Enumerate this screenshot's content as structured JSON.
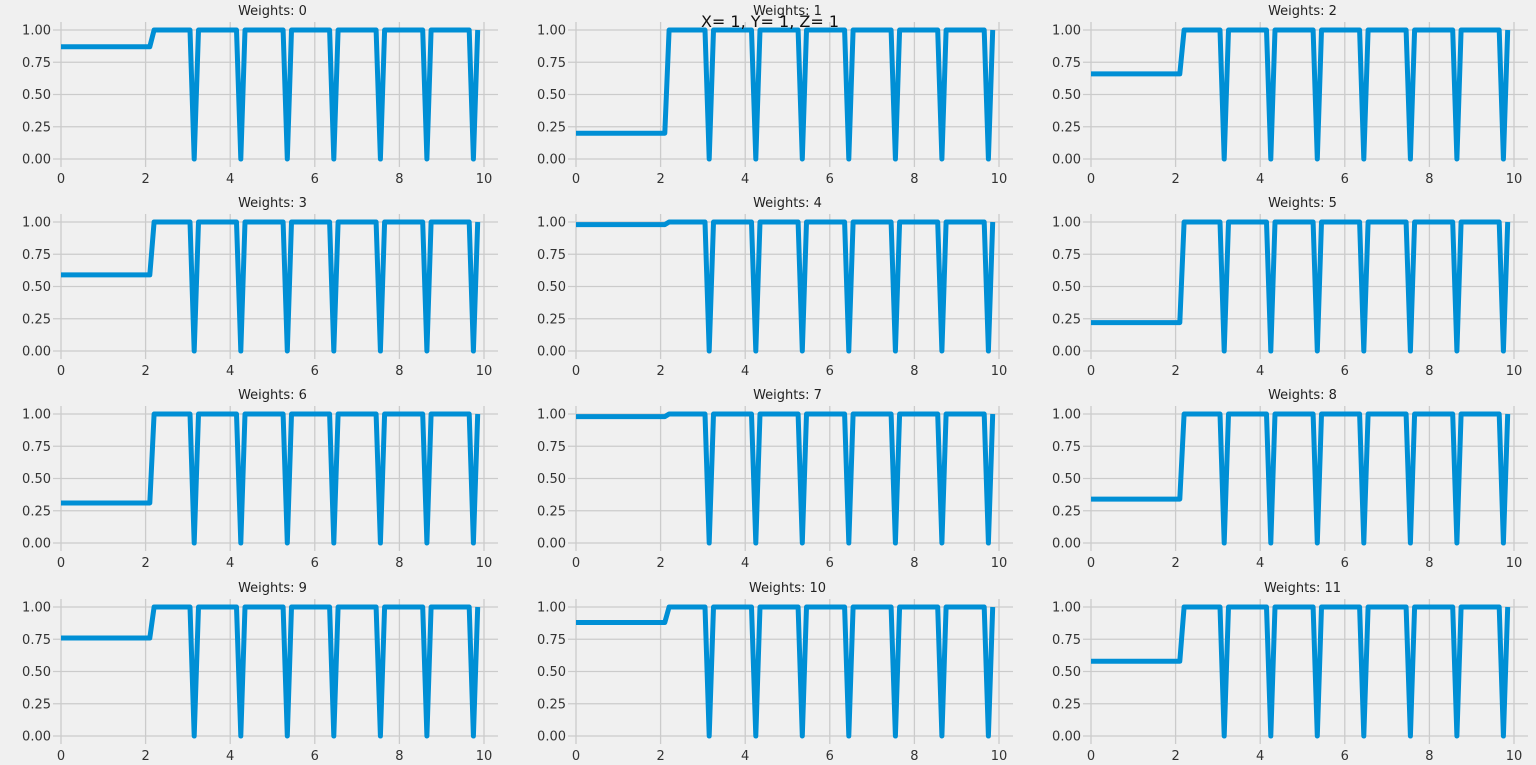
{
  "figure": {
    "suptitle": "X= 1, Y= 1, Z= 1",
    "line_color": "#008fd5",
    "background_color": "#f0f0f0",
    "grid_color": "#cbcbcb"
  },
  "chart_data": [
    {
      "type": "line",
      "title": "Weights: 0",
      "xlim": [
        0,
        10
      ],
      "ylim": [
        0,
        1
      ],
      "grid": true,
      "x_ticks": [
        "0",
        "2",
        "4",
        "6",
        "8",
        "10"
      ],
      "y_ticks": [
        "0.00",
        "0.25",
        "0.50",
        "0.75",
        "1.00"
      ],
      "x": [
        0,
        2.1,
        2.2,
        3.05,
        3.15,
        3.25,
        4.15,
        4.25,
        4.35,
        5.25,
        5.35,
        5.45,
        6.35,
        6.45,
        6.55,
        7.45,
        7.55,
        7.65,
        8.55,
        8.65,
        8.75,
        9.65,
        9.75,
        9.85
      ],
      "y": [
        0.87,
        0.87,
        1.0,
        1.0,
        0.0,
        1.0,
        1.0,
        0.0,
        1.0,
        1.0,
        0.0,
        1.0,
        1.0,
        0.0,
        1.0,
        1.0,
        0.0,
        1.0,
        1.0,
        0.0,
        1.0,
        1.0,
        0.0,
        1.0
      ]
    },
    {
      "type": "line",
      "title": "Weights: 1",
      "xlim": [
        0,
        10
      ],
      "ylim": [
        0,
        1
      ],
      "grid": true,
      "x_ticks": [
        "0",
        "2",
        "4",
        "6",
        "8",
        "10"
      ],
      "y_ticks": [
        "0.00",
        "0.25",
        "0.50",
        "0.75",
        "1.00"
      ],
      "x": [
        0,
        2.1,
        2.2,
        3.05,
        3.15,
        3.25,
        4.15,
        4.25,
        4.35,
        5.25,
        5.35,
        5.45,
        6.35,
        6.45,
        6.55,
        7.45,
        7.55,
        7.65,
        8.55,
        8.65,
        8.75,
        9.65,
        9.75,
        9.85
      ],
      "y": [
        0.2,
        0.2,
        1.0,
        1.0,
        0.0,
        1.0,
        1.0,
        0.0,
        1.0,
        1.0,
        0.0,
        1.0,
        1.0,
        0.0,
        1.0,
        1.0,
        0.0,
        1.0,
        1.0,
        0.0,
        1.0,
        1.0,
        0.0,
        1.0
      ]
    },
    {
      "type": "line",
      "title": "Weights: 2",
      "xlim": [
        0,
        10
      ],
      "ylim": [
        0,
        1
      ],
      "grid": true,
      "x_ticks": [
        "0",
        "2",
        "4",
        "6",
        "8",
        "10"
      ],
      "y_ticks": [
        "0.00",
        "0.25",
        "0.50",
        "0.75",
        "1.00"
      ],
      "x": [
        0,
        2.1,
        2.2,
        3.05,
        3.15,
        3.25,
        4.15,
        4.25,
        4.35,
        5.25,
        5.35,
        5.45,
        6.35,
        6.45,
        6.55,
        7.45,
        7.55,
        7.65,
        8.55,
        8.65,
        8.75,
        9.65,
        9.75,
        9.85
      ],
      "y": [
        0.66,
        0.66,
        1.0,
        1.0,
        0.0,
        1.0,
        1.0,
        0.0,
        1.0,
        1.0,
        0.0,
        1.0,
        1.0,
        0.0,
        1.0,
        1.0,
        0.0,
        1.0,
        1.0,
        0.0,
        1.0,
        1.0,
        0.0,
        1.0
      ]
    },
    {
      "type": "line",
      "title": "Weights: 3",
      "xlim": [
        0,
        10
      ],
      "ylim": [
        0,
        1
      ],
      "grid": true,
      "x_ticks": [
        "0",
        "2",
        "4",
        "6",
        "8",
        "10"
      ],
      "y_ticks": [
        "0.00",
        "0.25",
        "0.50",
        "0.75",
        "1.00"
      ],
      "x": [
        0,
        2.1,
        2.2,
        3.05,
        3.15,
        3.25,
        4.15,
        4.25,
        4.35,
        5.25,
        5.35,
        5.45,
        6.35,
        6.45,
        6.55,
        7.45,
        7.55,
        7.65,
        8.55,
        8.65,
        8.75,
        9.65,
        9.75,
        9.85
      ],
      "y": [
        0.59,
        0.59,
        1.0,
        1.0,
        0.0,
        1.0,
        1.0,
        0.0,
        1.0,
        1.0,
        0.0,
        1.0,
        1.0,
        0.0,
        1.0,
        1.0,
        0.0,
        1.0,
        1.0,
        0.0,
        1.0,
        1.0,
        0.0,
        1.0
      ]
    },
    {
      "type": "line",
      "title": "Weights: 4",
      "xlim": [
        0,
        10
      ],
      "ylim": [
        0,
        1
      ],
      "grid": true,
      "x_ticks": [
        "0",
        "2",
        "4",
        "6",
        "8",
        "10"
      ],
      "y_ticks": [
        "0.00",
        "0.25",
        "0.50",
        "0.75",
        "1.00"
      ],
      "x": [
        0,
        2.1,
        2.2,
        3.05,
        3.15,
        3.25,
        4.15,
        4.25,
        4.35,
        5.25,
        5.35,
        5.45,
        6.35,
        6.45,
        6.55,
        7.45,
        7.55,
        7.65,
        8.55,
        8.65,
        8.75,
        9.65,
        9.75,
        9.85
      ],
      "y": [
        0.98,
        0.98,
        1.0,
        1.0,
        0.0,
        1.0,
        1.0,
        0.0,
        1.0,
        1.0,
        0.0,
        1.0,
        1.0,
        0.0,
        1.0,
        1.0,
        0.0,
        1.0,
        1.0,
        0.0,
        1.0,
        1.0,
        0.0,
        1.0
      ]
    },
    {
      "type": "line",
      "title": "Weights: 5",
      "xlim": [
        0,
        10
      ],
      "ylim": [
        0,
        1
      ],
      "grid": true,
      "x_ticks": [
        "0",
        "2",
        "4",
        "6",
        "8",
        "10"
      ],
      "y_ticks": [
        "0.00",
        "0.25",
        "0.50",
        "0.75",
        "1.00"
      ],
      "x": [
        0,
        2.1,
        2.2,
        3.05,
        3.15,
        3.25,
        4.15,
        4.25,
        4.35,
        5.25,
        5.35,
        5.45,
        6.35,
        6.45,
        6.55,
        7.45,
        7.55,
        7.65,
        8.55,
        8.65,
        8.75,
        9.65,
        9.75,
        9.85
      ],
      "y": [
        0.22,
        0.22,
        1.0,
        1.0,
        0.0,
        1.0,
        1.0,
        0.0,
        1.0,
        1.0,
        0.0,
        1.0,
        1.0,
        0.0,
        1.0,
        1.0,
        0.0,
        1.0,
        1.0,
        0.0,
        1.0,
        1.0,
        0.0,
        1.0
      ]
    },
    {
      "type": "line",
      "title": "Weights: 6",
      "xlim": [
        0,
        10
      ],
      "ylim": [
        0,
        1
      ],
      "grid": true,
      "x_ticks": [
        "0",
        "2",
        "4",
        "6",
        "8",
        "10"
      ],
      "y_ticks": [
        "0.00",
        "0.25",
        "0.50",
        "0.75",
        "1.00"
      ],
      "x": [
        0,
        2.1,
        2.2,
        3.05,
        3.15,
        3.25,
        4.15,
        4.25,
        4.35,
        5.25,
        5.35,
        5.45,
        6.35,
        6.45,
        6.55,
        7.45,
        7.55,
        7.65,
        8.55,
        8.65,
        8.75,
        9.65,
        9.75,
        9.85
      ],
      "y": [
        0.31,
        0.31,
        1.0,
        1.0,
        0.0,
        1.0,
        1.0,
        0.0,
        1.0,
        1.0,
        0.0,
        1.0,
        1.0,
        0.0,
        1.0,
        1.0,
        0.0,
        1.0,
        1.0,
        0.0,
        1.0,
        1.0,
        0.0,
        1.0
      ]
    },
    {
      "type": "line",
      "title": "Weights: 7",
      "xlim": [
        0,
        10
      ],
      "ylim": [
        0,
        1
      ],
      "grid": true,
      "x_ticks": [
        "0",
        "2",
        "4",
        "6",
        "8",
        "10"
      ],
      "y_ticks": [
        "0.00",
        "0.25",
        "0.50",
        "0.75",
        "1.00"
      ],
      "x": [
        0,
        2.1,
        2.2,
        3.05,
        3.15,
        3.25,
        4.15,
        4.25,
        4.35,
        5.25,
        5.35,
        5.45,
        6.35,
        6.45,
        6.55,
        7.45,
        7.55,
        7.65,
        8.55,
        8.65,
        8.75,
        9.65,
        9.75,
        9.85
      ],
      "y": [
        0.98,
        0.98,
        1.0,
        1.0,
        0.0,
        1.0,
        1.0,
        0.0,
        1.0,
        1.0,
        0.0,
        1.0,
        1.0,
        0.0,
        1.0,
        1.0,
        0.0,
        1.0,
        1.0,
        0.0,
        1.0,
        1.0,
        0.0,
        1.0
      ]
    },
    {
      "type": "line",
      "title": "Weights: 8",
      "xlim": [
        0,
        10
      ],
      "ylim": [
        0,
        1
      ],
      "grid": true,
      "x_ticks": [
        "0",
        "2",
        "4",
        "6",
        "8",
        "10"
      ],
      "y_ticks": [
        "0.00",
        "0.25",
        "0.50",
        "0.75",
        "1.00"
      ],
      "x": [
        0,
        2.1,
        2.2,
        3.05,
        3.15,
        3.25,
        4.15,
        4.25,
        4.35,
        5.25,
        5.35,
        5.45,
        6.35,
        6.45,
        6.55,
        7.45,
        7.55,
        7.65,
        8.55,
        8.65,
        8.75,
        9.65,
        9.75,
        9.85
      ],
      "y": [
        0.34,
        0.34,
        1.0,
        1.0,
        0.0,
        1.0,
        1.0,
        0.0,
        1.0,
        1.0,
        0.0,
        1.0,
        1.0,
        0.0,
        1.0,
        1.0,
        0.0,
        1.0,
        1.0,
        0.0,
        1.0,
        1.0,
        0.0,
        1.0
      ]
    },
    {
      "type": "line",
      "title": "Weights: 9",
      "xlim": [
        0,
        10
      ],
      "ylim": [
        0,
        1
      ],
      "grid": true,
      "x_ticks": [
        "0",
        "2",
        "4",
        "6",
        "8",
        "10"
      ],
      "y_ticks": [
        "0.00",
        "0.25",
        "0.50",
        "0.75",
        "1.00"
      ],
      "x": [
        0,
        2.1,
        2.2,
        3.05,
        3.15,
        3.25,
        4.15,
        4.25,
        4.35,
        5.25,
        5.35,
        5.45,
        6.35,
        6.45,
        6.55,
        7.45,
        7.55,
        7.65,
        8.55,
        8.65,
        8.75,
        9.65,
        9.75,
        9.85
      ],
      "y": [
        0.76,
        0.76,
        1.0,
        1.0,
        0.0,
        1.0,
        1.0,
        0.0,
        1.0,
        1.0,
        0.0,
        1.0,
        1.0,
        0.0,
        1.0,
        1.0,
        0.0,
        1.0,
        1.0,
        0.0,
        1.0,
        1.0,
        0.0,
        1.0
      ]
    },
    {
      "type": "line",
      "title": "Weights: 10",
      "xlim": [
        0,
        10
      ],
      "ylim": [
        0,
        1
      ],
      "grid": true,
      "x_ticks": [
        "0",
        "2",
        "4",
        "6",
        "8",
        "10"
      ],
      "y_ticks": [
        "0.00",
        "0.25",
        "0.50",
        "0.75",
        "1.00"
      ],
      "x": [
        0,
        2.1,
        2.2,
        3.05,
        3.15,
        3.25,
        4.15,
        4.25,
        4.35,
        5.25,
        5.35,
        5.45,
        6.35,
        6.45,
        6.55,
        7.45,
        7.55,
        7.65,
        8.55,
        8.65,
        8.75,
        9.65,
        9.75,
        9.85
      ],
      "y": [
        0.88,
        0.88,
        1.0,
        1.0,
        0.0,
        1.0,
        1.0,
        0.0,
        1.0,
        1.0,
        0.0,
        1.0,
        1.0,
        0.0,
        1.0,
        1.0,
        0.0,
        1.0,
        1.0,
        0.0,
        1.0,
        1.0,
        0.0,
        1.0
      ]
    },
    {
      "type": "line",
      "title": "Weights: 11",
      "xlim": [
        0,
        10
      ],
      "ylim": [
        0,
        1
      ],
      "grid": true,
      "x_ticks": [
        "0",
        "2",
        "4",
        "6",
        "8",
        "10"
      ],
      "y_ticks": [
        "0.00",
        "0.25",
        "0.50",
        "0.75",
        "1.00"
      ],
      "x": [
        0,
        2.1,
        2.2,
        3.05,
        3.15,
        3.25,
        4.15,
        4.25,
        4.35,
        5.25,
        5.35,
        5.45,
        6.35,
        6.45,
        6.55,
        7.45,
        7.55,
        7.65,
        8.55,
        8.65,
        8.75,
        9.65,
        9.75,
        9.85
      ],
      "y": [
        0.58,
        0.58,
        1.0,
        1.0,
        0.0,
        1.0,
        1.0,
        0.0,
        1.0,
        1.0,
        0.0,
        1.0,
        1.0,
        0.0,
        1.0,
        1.0,
        0.0,
        1.0,
        1.0,
        0.0,
        1.0,
        1.0,
        0.0,
        1.0
      ]
    }
  ]
}
